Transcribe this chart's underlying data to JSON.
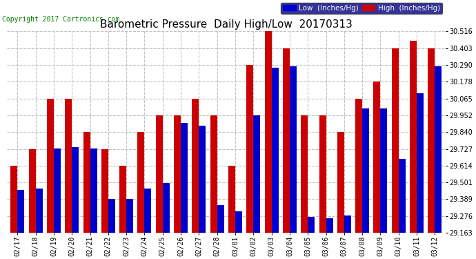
{
  "title": "Barometric Pressure  Daily High/Low  20170313",
  "copyright": "Copyright 2017 Cartronics.com",
  "legend_low": "Low  (Inches/Hg)",
  "legend_high": "High  (Inches/Hg)",
  "categories": [
    "02/17",
    "02/18",
    "02/19",
    "02/20",
    "02/21",
    "02/22",
    "02/23",
    "02/24",
    "02/25",
    "02/26",
    "02/27",
    "02/28",
    "03/01",
    "03/02",
    "03/03",
    "03/04",
    "03/05",
    "03/06",
    "03/07",
    "03/08",
    "03/09",
    "03/10",
    "03/11",
    "03/12"
  ],
  "low_values": [
    29.45,
    29.46,
    29.73,
    29.74,
    29.73,
    29.39,
    29.39,
    29.46,
    29.5,
    29.9,
    29.88,
    29.35,
    29.31,
    29.95,
    30.27,
    30.28,
    29.27,
    29.26,
    29.28,
    30.0,
    30.0,
    29.66,
    30.1,
    30.28
  ],
  "high_values": [
    29.614,
    29.727,
    30.065,
    30.065,
    29.84,
    29.727,
    29.614,
    29.84,
    29.952,
    29.952,
    30.065,
    29.952,
    29.614,
    30.29,
    30.516,
    30.403,
    29.952,
    29.952,
    29.84,
    30.065,
    30.178,
    30.403,
    30.452,
    30.403
  ],
  "ymin": 29.163,
  "ymax": 30.516,
  "yticks": [
    29.163,
    29.276,
    29.389,
    29.501,
    29.614,
    29.727,
    29.84,
    29.952,
    30.065,
    30.178,
    30.29,
    30.403,
    30.516
  ],
  "low_color": "#0000cc",
  "high_color": "#cc0000",
  "bg_color": "#ffffff",
  "grid_color": "#c0c0c0",
  "title_fontsize": 11,
  "copyright_fontsize": 7,
  "tick_fontsize": 7,
  "legend_fontsize": 7.5
}
